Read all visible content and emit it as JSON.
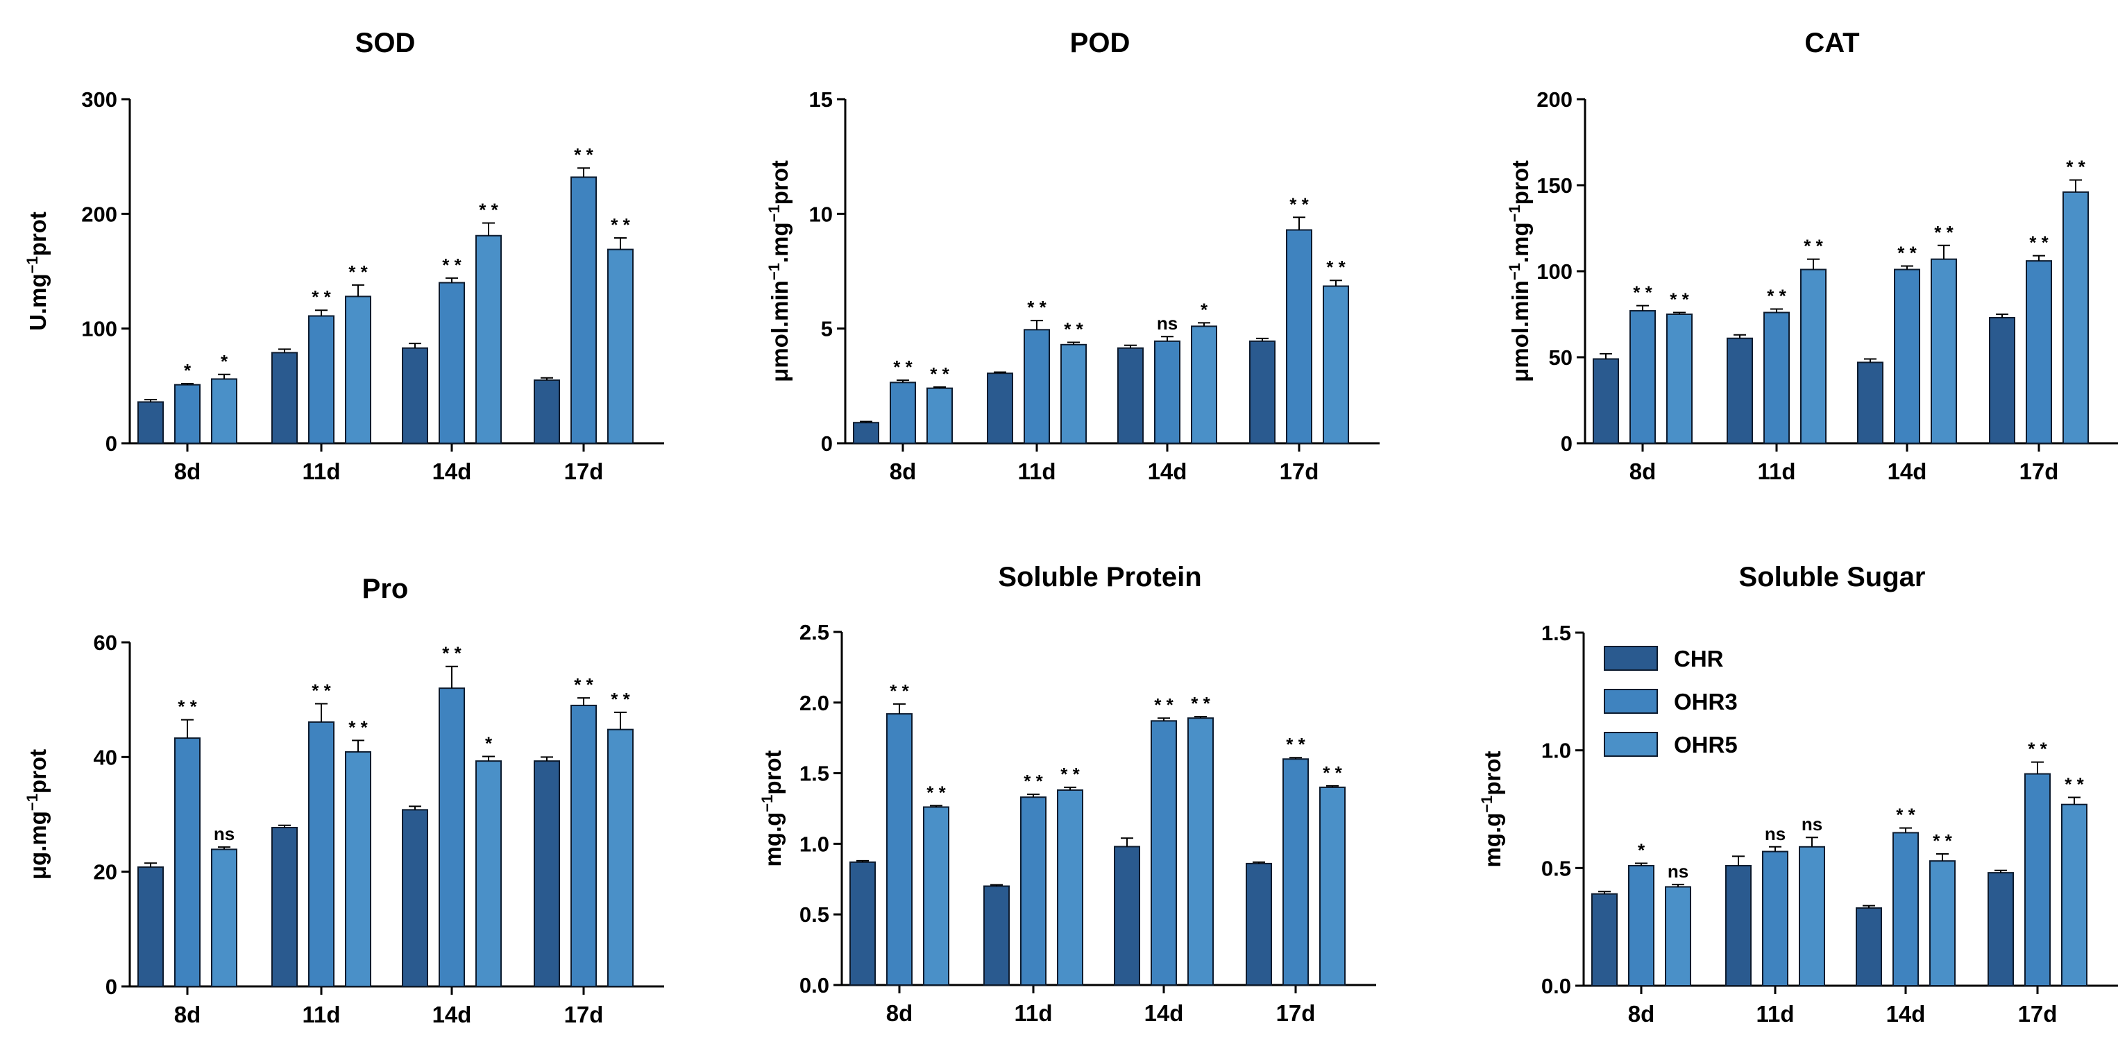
{
  "series_names": [
    "CHR",
    "OHR3",
    "OHR5"
  ],
  "colors": {
    "CHR": "#2a5a8f",
    "OHR3": "#3f83bf",
    "OHR5": "#4a90c8"
  },
  "chart_data": [
    {
      "type": "bar",
      "title": "SOD",
      "ylabel_main": "U.mg",
      "ylabel_sup": "−1",
      "ylabel_tail": "prot",
      "ylim": [
        0,
        300
      ],
      "yticks": [
        0,
        100,
        200,
        300
      ],
      "categories": [
        "8d",
        "11d",
        "14d",
        "17d"
      ],
      "series": [
        {
          "name": "CHR",
          "values": [
            36,
            79,
            83,
            55
          ],
          "errors": [
            2,
            3,
            4,
            2
          ]
        },
        {
          "name": "OHR3",
          "values": [
            51,
            111,
            140,
            232
          ],
          "errors": [
            1,
            5,
            4,
            8
          ]
        },
        {
          "name": "OHR5",
          "values": [
            56,
            128,
            181,
            169
          ],
          "errors": [
            4,
            10,
            11,
            10
          ]
        }
      ],
      "significance": [
        [
          "",
          "",
          "",
          ""
        ],
        [
          "*",
          "* *",
          "* *",
          "* *"
        ],
        [
          "*",
          "* *",
          "* *",
          "* *"
        ]
      ]
    },
    {
      "type": "bar",
      "title": "POD",
      "ylabel_main": "μmol.min",
      "ylabel_sup": "−1",
      "ylabel_mid": ".mg",
      "ylabel_sup2": "−1",
      "ylabel_tail": "prot",
      "ylim": [
        0,
        15
      ],
      "yticks": [
        0,
        5,
        10,
        15
      ],
      "categories": [
        "8d",
        "11d",
        "14d",
        "17d"
      ],
      "series": [
        {
          "name": "CHR",
          "values": [
            0.9,
            3.05,
            4.15,
            4.45
          ],
          "errors": [
            0.05,
            0.05,
            0.12,
            0.12
          ]
        },
        {
          "name": "OHR3",
          "values": [
            2.65,
            4.95,
            4.45,
            9.3
          ],
          "errors": [
            0.1,
            0.4,
            0.2,
            0.55
          ]
        },
        {
          "name": "OHR5",
          "values": [
            2.4,
            4.3,
            5.1,
            6.85
          ],
          "errors": [
            0.05,
            0.1,
            0.15,
            0.25
          ]
        }
      ],
      "significance": [
        [
          "",
          "",
          "",
          ""
        ],
        [
          "* *",
          "* *",
          "ns",
          "* *"
        ],
        [
          "* *",
          "* *",
          "*",
          "* *"
        ]
      ]
    },
    {
      "type": "bar",
      "title": "CAT",
      "ylabel_main": "μmol.min",
      "ylabel_sup": "−1",
      "ylabel_mid": ".mg",
      "ylabel_sup2": "−1",
      "ylabel_tail": "prot",
      "ylim": [
        0,
        200
      ],
      "yticks": [
        0,
        50,
        100,
        150,
        200
      ],
      "categories": [
        "8d",
        "11d",
        "14d",
        "17d"
      ],
      "series": [
        {
          "name": "CHR",
          "values": [
            49,
            61,
            47,
            73
          ],
          "errors": [
            3,
            2,
            2,
            2
          ]
        },
        {
          "name": "OHR3",
          "values": [
            77,
            76,
            101,
            106
          ],
          "errors": [
            3,
            2,
            2,
            3
          ]
        },
        {
          "name": "OHR5",
          "values": [
            75,
            101,
            107,
            146
          ],
          "errors": [
            1,
            6,
            8,
            7
          ]
        }
      ],
      "significance": [
        [
          "",
          "",
          "",
          ""
        ],
        [
          "* *",
          "* *",
          "* *",
          "* *"
        ],
        [
          "* *",
          "* *",
          "* *",
          "* *"
        ]
      ]
    },
    {
      "type": "bar",
      "title": "Pro",
      "ylabel_main": "μg.mg",
      "ylabel_sup": "−1",
      "ylabel_tail": "prot",
      "ylim": [
        0,
        60
      ],
      "yticks": [
        0,
        20,
        40,
        60
      ],
      "categories": [
        "8d",
        "11d",
        "14d",
        "17d"
      ],
      "series": [
        {
          "name": "CHR",
          "values": [
            20.8,
            27.7,
            30.8,
            39.3
          ],
          "errors": [
            0.7,
            0.4,
            0.6,
            0.7
          ]
        },
        {
          "name": "OHR3",
          "values": [
            43.3,
            46.1,
            52.0,
            49.0
          ],
          "errors": [
            3.2,
            3.2,
            3.8,
            1.3
          ]
        },
        {
          "name": "OHR5",
          "values": [
            23.9,
            40.9,
            39.3,
            44.8
          ],
          "errors": [
            0.4,
            2.0,
            0.8,
            3.0
          ]
        }
      ],
      "significance": [
        [
          "",
          "",
          "",
          ""
        ],
        [
          "* *",
          "* *",
          "* *",
          "* *"
        ],
        [
          "ns",
          "* *",
          "*",
          "* *"
        ]
      ]
    },
    {
      "type": "bar",
      "title": "Soluble Protein",
      "ylabel_main": "mg.g",
      "ylabel_sup": "−1",
      "ylabel_tail": "prot",
      "ylim": [
        0,
        2.5
      ],
      "yticks": [
        0.0,
        0.5,
        1.0,
        1.5,
        2.0,
        2.5
      ],
      "tick_decimals": 1,
      "categories": [
        "8d",
        "11d",
        "14d",
        "17d"
      ],
      "series": [
        {
          "name": "CHR",
          "values": [
            0.87,
            0.7,
            0.98,
            0.86
          ],
          "errors": [
            0.01,
            0.01,
            0.06,
            0.01
          ]
        },
        {
          "name": "OHR3",
          "values": [
            1.92,
            1.33,
            1.87,
            1.6
          ],
          "errors": [
            0.07,
            0.02,
            0.02,
            0.01
          ]
        },
        {
          "name": "OHR5",
          "values": [
            1.26,
            1.38,
            1.89,
            1.4
          ],
          "errors": [
            0.01,
            0.02,
            0.01,
            0.01
          ]
        }
      ],
      "significance": [
        [
          "",
          "",
          "",
          ""
        ],
        [
          "* *",
          "* *",
          "* *",
          "* *"
        ],
        [
          "* *",
          "* *",
          "* *",
          "* *"
        ]
      ]
    },
    {
      "type": "bar",
      "title": "Soluble Sugar",
      "ylabel_main": "mg.g",
      "ylabel_sup": "−1",
      "ylabel_tail": "prot",
      "ylim": [
        0,
        1.5
      ],
      "yticks": [
        0.0,
        0.5,
        1.0,
        1.5
      ],
      "tick_decimals": 1,
      "categories": [
        "8d",
        "11d",
        "14d",
        "17d"
      ],
      "series": [
        {
          "name": "CHR",
          "values": [
            0.39,
            0.51,
            0.33,
            0.48
          ],
          "errors": [
            0.01,
            0.04,
            0.01,
            0.01
          ]
        },
        {
          "name": "OHR3",
          "values": [
            0.51,
            0.57,
            0.65,
            0.9
          ],
          "errors": [
            0.01,
            0.02,
            0.02,
            0.05
          ]
        },
        {
          "name": "OHR5",
          "values": [
            0.42,
            0.59,
            0.53,
            0.77
          ],
          "errors": [
            0.01,
            0.04,
            0.03,
            0.03
          ]
        }
      ],
      "significance": [
        [
          "",
          "",
          "",
          ""
        ],
        [
          "*",
          "ns",
          "* *",
          "* *"
        ],
        [
          "ns",
          "ns",
          "* *",
          "* *"
        ]
      ],
      "legend": {
        "entries": [
          "CHR",
          "OHR3",
          "OHR5"
        ],
        "location": "top-left"
      }
    }
  ]
}
